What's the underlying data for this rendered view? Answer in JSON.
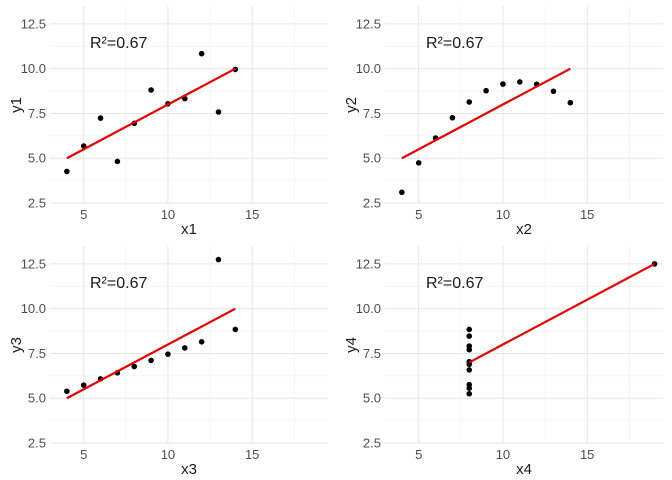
{
  "chart_data": [
    {
      "type": "scatter",
      "xlabel": "x1",
      "ylabel": "y1",
      "annotation": "R²=0.67",
      "xlim": [
        3,
        19.5
      ],
      "ylim": [
        2.5,
        13.5
      ],
      "xticks": [
        5,
        10,
        15
      ],
      "yticks": [
        2.5,
        5.0,
        7.5,
        10.0,
        12.5
      ],
      "ytick_labels": [
        "2.5",
        "5.0",
        "7.5",
        "10.0",
        "12.5"
      ],
      "grid": true,
      "legend": "none",
      "points": [
        [
          10,
          8.04
        ],
        [
          8,
          6.95
        ],
        [
          13,
          7.58
        ],
        [
          9,
          8.81
        ],
        [
          11,
          8.33
        ],
        [
          14,
          9.96
        ],
        [
          6,
          7.24
        ],
        [
          4,
          4.26
        ],
        [
          12,
          10.84
        ],
        [
          7,
          4.82
        ],
        [
          5,
          5.68
        ]
      ],
      "fit_line": {
        "intercept": 3.0,
        "slope": 0.5,
        "x_range": [
          4,
          14
        ],
        "color": "#e00000"
      },
      "point_color": "#000000"
    },
    {
      "type": "scatter",
      "xlabel": "x2",
      "ylabel": "y2",
      "annotation": "R²=0.67",
      "xlim": [
        3,
        19.5
      ],
      "ylim": [
        2.5,
        13.5
      ],
      "xticks": [
        5,
        10,
        15
      ],
      "yticks": [
        2.5,
        5.0,
        7.5,
        10.0,
        12.5
      ],
      "ytick_labels": [
        "2.5",
        "5.0",
        "7.5",
        "10.0",
        "12.5"
      ],
      "grid": true,
      "legend": "none",
      "points": [
        [
          10,
          9.14
        ],
        [
          8,
          8.14
        ],
        [
          13,
          8.74
        ],
        [
          9,
          8.77
        ],
        [
          11,
          9.26
        ],
        [
          14,
          8.1
        ],
        [
          6,
          6.13
        ],
        [
          4,
          3.1
        ],
        [
          12,
          9.13
        ],
        [
          7,
          7.26
        ],
        [
          5,
          4.74
        ]
      ],
      "fit_line": {
        "intercept": 3.0,
        "slope": 0.5,
        "x_range": [
          4,
          14
        ],
        "color": "#e00000"
      },
      "point_color": "#000000"
    },
    {
      "type": "scatter",
      "xlabel": "x3",
      "ylabel": "y3",
      "annotation": "R²=0.67",
      "xlim": [
        3,
        19.5
      ],
      "ylim": [
        2.5,
        13.5
      ],
      "xticks": [
        5,
        10,
        15
      ],
      "yticks": [
        2.5,
        5.0,
        7.5,
        10.0,
        12.5
      ],
      "ytick_labels": [
        "2.5",
        "5.0",
        "7.5",
        "10.0",
        "12.5"
      ],
      "grid": true,
      "legend": "none",
      "points": [
        [
          10,
          7.46
        ],
        [
          8,
          6.77
        ],
        [
          13,
          12.74
        ],
        [
          9,
          7.11
        ],
        [
          11,
          7.81
        ],
        [
          14,
          8.84
        ],
        [
          6,
          6.08
        ],
        [
          4,
          5.39
        ],
        [
          12,
          8.15
        ],
        [
          7,
          6.42
        ],
        [
          5,
          5.73
        ]
      ],
      "fit_line": {
        "intercept": 3.0,
        "slope": 0.5,
        "x_range": [
          4,
          14
        ],
        "color": "#e00000"
      },
      "point_color": "#000000"
    },
    {
      "type": "scatter",
      "xlabel": "x4",
      "ylabel": "y4",
      "annotation": "R²=0.67",
      "xlim": [
        3,
        19.5
      ],
      "ylim": [
        2.5,
        13.5
      ],
      "xticks": [
        5,
        10,
        15
      ],
      "yticks": [
        2.5,
        5.0,
        7.5,
        10.0,
        12.5
      ],
      "ytick_labels": [
        "2.5",
        "5.0",
        "7.5",
        "10.0",
        "12.5"
      ],
      "grid": true,
      "legend": "none",
      "points": [
        [
          8,
          6.58
        ],
        [
          8,
          5.76
        ],
        [
          8,
          7.71
        ],
        [
          8,
          8.84
        ],
        [
          8,
          8.47
        ],
        [
          8,
          7.04
        ],
        [
          8,
          5.25
        ],
        [
          19,
          12.5
        ],
        [
          8,
          5.56
        ],
        [
          8,
          7.91
        ],
        [
          8,
          6.89
        ]
      ],
      "fit_line": {
        "intercept": 3.0,
        "slope": 0.5,
        "x_range": [
          8,
          19
        ],
        "color": "#e00000"
      },
      "point_color": "#000000"
    }
  ]
}
